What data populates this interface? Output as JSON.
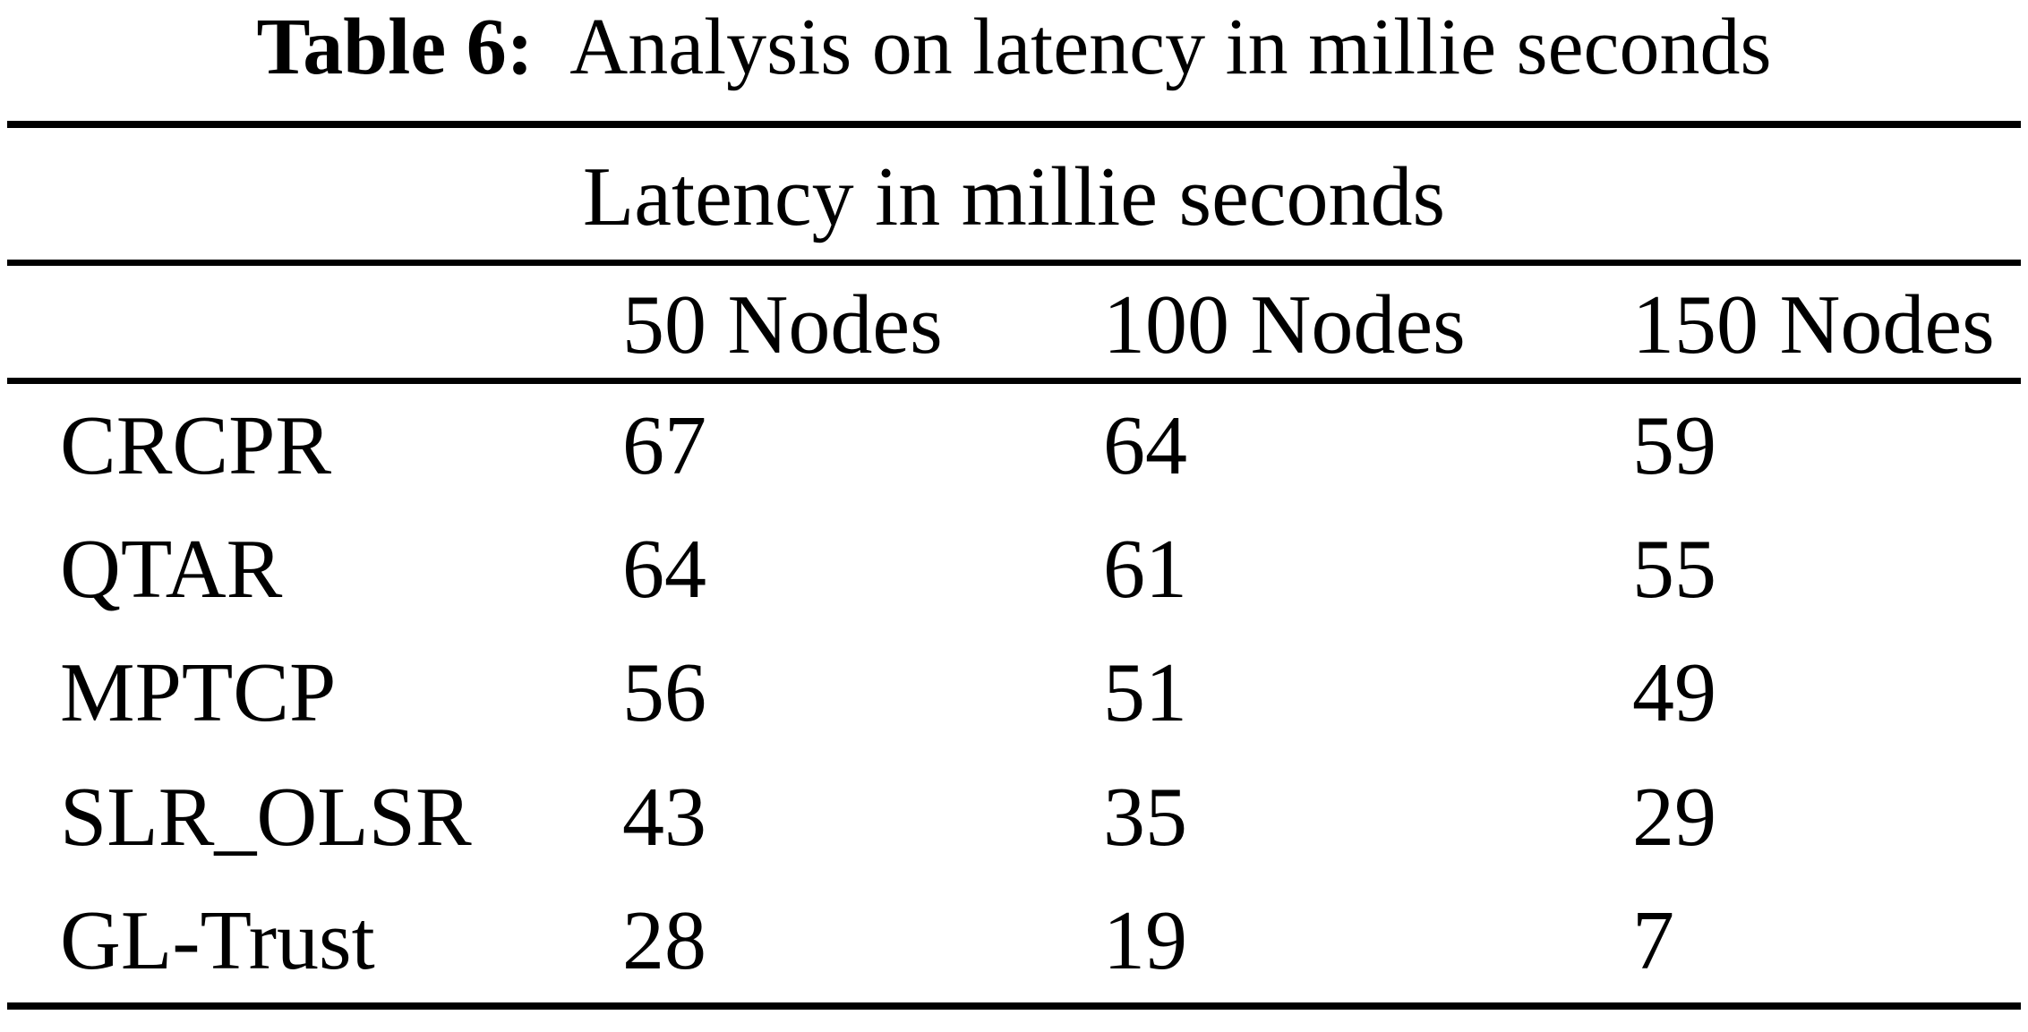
{
  "caption": {
    "label": "Table 6:",
    "text": "Analysis on latency in millie seconds"
  },
  "table": {
    "group_header": "Latency in millie seconds",
    "columns": [
      "50 Nodes",
      "100 Nodes",
      "150 Nodes"
    ],
    "rows": [
      {
        "label": "CRCPR",
        "values": [
          "67",
          "64",
          "59"
        ]
      },
      {
        "label": "QTAR",
        "values": [
          "64",
          "61",
          "55"
        ]
      },
      {
        "label": "MPTCP",
        "values": [
          "56",
          "51",
          "49"
        ]
      },
      {
        "label": "SLR_OLSR",
        "values": [
          "43",
          "35",
          "29"
        ]
      },
      {
        "label": "GL-Trust",
        "values": [
          "28",
          "19",
          "7"
        ]
      }
    ]
  },
  "colors": {
    "background": "#ffffff",
    "text": "#000000",
    "rule": "#000000"
  },
  "chart_data": {
    "type": "table",
    "title": "Table 6: Analysis on latency in millie seconds",
    "group_header": "Latency in millie seconds",
    "categories": [
      "50 Nodes",
      "100 Nodes",
      "150 Nodes"
    ],
    "series": [
      {
        "name": "CRCPR",
        "values": [
          67,
          64,
          59
        ]
      },
      {
        "name": "QTAR",
        "values": [
          64,
          61,
          55
        ]
      },
      {
        "name": "MPTCP",
        "values": [
          56,
          51,
          49
        ]
      },
      {
        "name": "SLR_OLSR",
        "values": [
          43,
          35,
          29
        ]
      },
      {
        "name": "GL-Trust",
        "values": [
          28,
          19,
          7
        ]
      }
    ]
  }
}
